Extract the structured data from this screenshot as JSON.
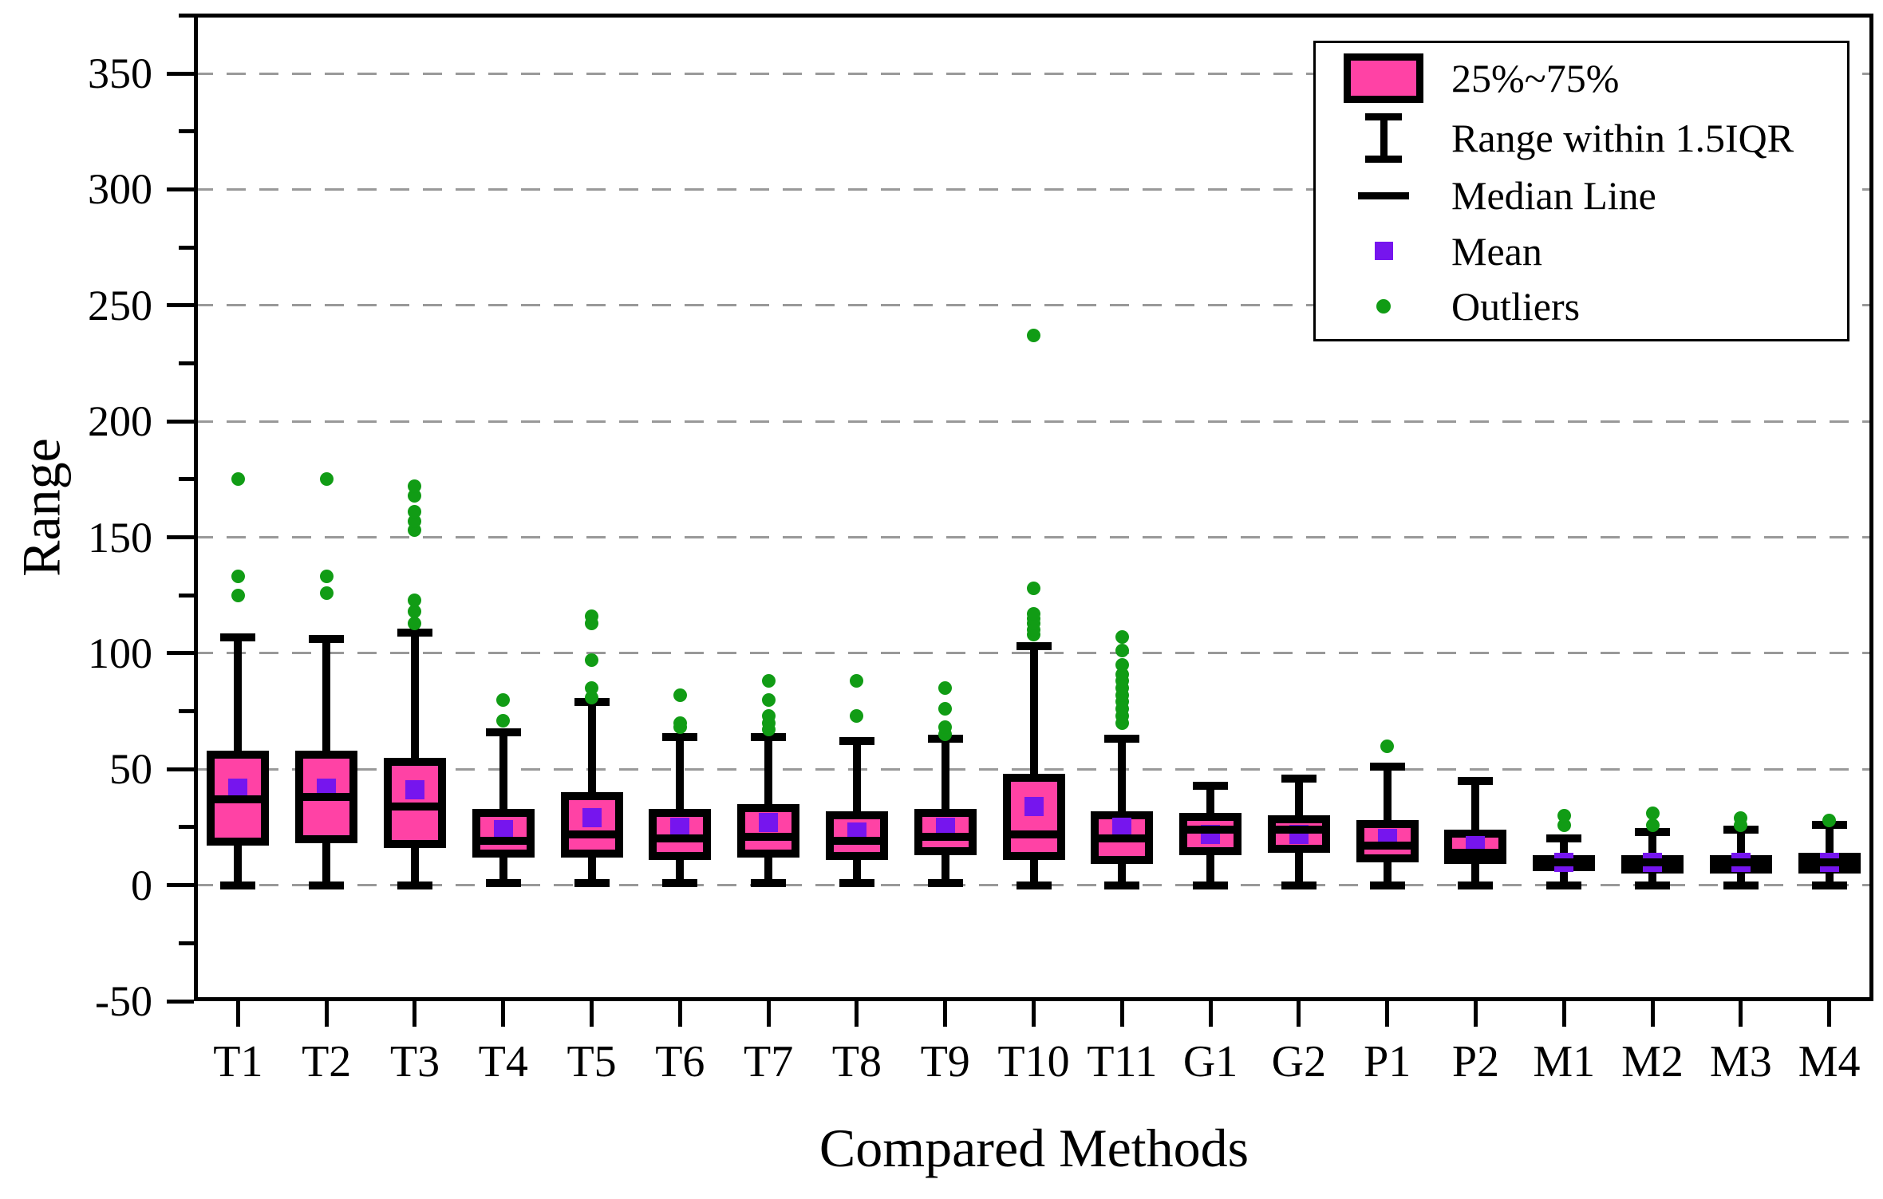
{
  "figure": {
    "background": "#FFFFFF",
    "y_axis_title": "Range",
    "x_axis_title": "Compared Methods"
  },
  "legend": {
    "entries": [
      {
        "icon": "box-swatch-icon",
        "label": "25%~75%"
      },
      {
        "icon": "whisker-icon",
        "label": "Range within 1.5IQR"
      },
      {
        "icon": "median-line-icon",
        "label": "Median Line"
      },
      {
        "icon": "mean-marker-icon",
        "label": "Mean"
      },
      {
        "icon": "outlier-marker-icon",
        "label": "Outliers"
      }
    ]
  },
  "colors": {
    "box_fill": "#FF42A5",
    "box_border": "#000000",
    "mean_marker": "#7615EE",
    "outlier_marker": "#119C15",
    "gridline": "#999999",
    "axis": "#000000",
    "background": "#FFFFFF"
  },
  "chart_data": {
    "type": "box",
    "title": "",
    "xlabel": "Compared Methods",
    "ylabel": "Range",
    "ylim": [
      -50,
      376
    ],
    "grid": "horizontal-dashed",
    "legend_position": "top-right",
    "y_major_ticks": [
      350,
      300,
      250,
      200,
      150,
      100,
      50,
      0,
      -50
    ],
    "y_minor_ticks": [
      375,
      325,
      275,
      225,
      175,
      125,
      75,
      25,
      -25
    ],
    "gridlines_at": [
      350,
      300,
      250,
      200,
      150,
      100,
      50,
      0
    ],
    "categories": [
      "T1",
      "T2",
      "T3",
      "T4",
      "T5",
      "T6",
      "T7",
      "T8",
      "T9",
      "T10",
      "T11",
      "G1",
      "G2",
      "P1",
      "P2",
      "M1",
      "M2",
      "M3",
      "M4"
    ],
    "boxes": [
      {
        "category": "T1",
        "whisker_low": 0,
        "q1": 17,
        "median": 37,
        "q3": 58,
        "whisker_high": 107,
        "mean": 42,
        "outliers": [
          125,
          133,
          175
        ]
      },
      {
        "category": "T2",
        "whisker_low": 0,
        "q1": 18,
        "median": 38,
        "q3": 58,
        "whisker_high": 106,
        "mean": 42,
        "outliers": [
          126,
          133,
          175
        ]
      },
      {
        "category": "T3",
        "whisker_low": 0,
        "q1": 16,
        "median": 34,
        "q3": 55,
        "whisker_high": 109,
        "mean": 41,
        "outliers": [
          113,
          118,
          123,
          153,
          157,
          161,
          168,
          172
        ]
      },
      {
        "category": "T4",
        "whisker_low": 1,
        "q1": 12,
        "median": 19,
        "q3": 33,
        "whisker_high": 66,
        "mean": 24,
        "outliers": [
          71,
          80
        ]
      },
      {
        "category": "T5",
        "whisker_low": 1,
        "q1": 12,
        "median": 22,
        "q3": 40,
        "whisker_high": 79,
        "mean": 29,
        "outliers": [
          81,
          85,
          97,
          113,
          116
        ]
      },
      {
        "category": "T6",
        "whisker_low": 1,
        "q1": 11,
        "median": 20,
        "q3": 33,
        "whisker_high": 64,
        "mean": 25,
        "outliers": [
          68,
          70,
          82
        ]
      },
      {
        "category": "T7",
        "whisker_low": 1,
        "q1": 12,
        "median": 21,
        "q3": 35,
        "whisker_high": 64,
        "mean": 27,
        "outliers": [
          67,
          70,
          73,
          80,
          88
        ]
      },
      {
        "category": "T8",
        "whisker_low": 1,
        "q1": 11,
        "median": 19,
        "q3": 32,
        "whisker_high": 62,
        "mean": 23,
        "outliers": [
          73,
          88
        ]
      },
      {
        "category": "T9",
        "whisker_low": 1,
        "q1": 13,
        "median": 21,
        "q3": 33,
        "whisker_high": 63,
        "mean": 25,
        "outliers": [
          65,
          68,
          76,
          85
        ]
      },
      {
        "category": "T10",
        "whisker_low": 0,
        "q1": 11,
        "median": 22,
        "q3": 48,
        "whisker_high": 103,
        "mean": 34,
        "outliers": [
          108,
          110,
          113,
          115,
          117,
          128,
          237
        ]
      },
      {
        "category": "T11",
        "whisker_low": 0,
        "q1": 9,
        "median": 20,
        "q3": 32,
        "whisker_high": 63,
        "mean": 25,
        "outliers": [
          70,
          73,
          76,
          79,
          82,
          85,
          88,
          91,
          95,
          101,
          107
        ]
      },
      {
        "category": "G1",
        "whisker_low": 0,
        "q1": 13,
        "median": 24,
        "q3": 31,
        "whisker_high": 43,
        "mean": 22,
        "outliers": []
      },
      {
        "category": "G2",
        "whisker_low": 0,
        "q1": 14,
        "median": 24,
        "q3": 30,
        "whisker_high": 46,
        "mean": 22,
        "outliers": []
      },
      {
        "category": "P1",
        "whisker_low": 0,
        "q1": 10,
        "median": 17,
        "q3": 28,
        "whisker_high": 51,
        "mean": 20,
        "outliers": [
          60
        ]
      },
      {
        "category": "P2",
        "whisker_low": 0,
        "q1": 9,
        "median": 14,
        "q3": 24,
        "whisker_high": 45,
        "mean": 17,
        "outliers": []
      },
      {
        "category": "M1",
        "whisker_low": 0,
        "q1": 6,
        "median": 10,
        "q3": 13,
        "whisker_high": 20,
        "mean": 10,
        "outliers": [
          26,
          30
        ]
      },
      {
        "category": "M2",
        "whisker_low": 0,
        "q1": 5,
        "median": 10,
        "q3": 13,
        "whisker_high": 23,
        "mean": 10,
        "outliers": [
          26,
          31
        ]
      },
      {
        "category": "M3",
        "whisker_low": 0,
        "q1": 5,
        "median": 10,
        "q3": 13,
        "whisker_high": 24,
        "mean": 10,
        "outliers": [
          26,
          29
        ]
      },
      {
        "category": "M4",
        "whisker_low": 0,
        "q1": 5,
        "median": 10,
        "q3": 14,
        "whisker_high": 26,
        "mean": 10,
        "outliers": [
          28
        ]
      }
    ]
  }
}
